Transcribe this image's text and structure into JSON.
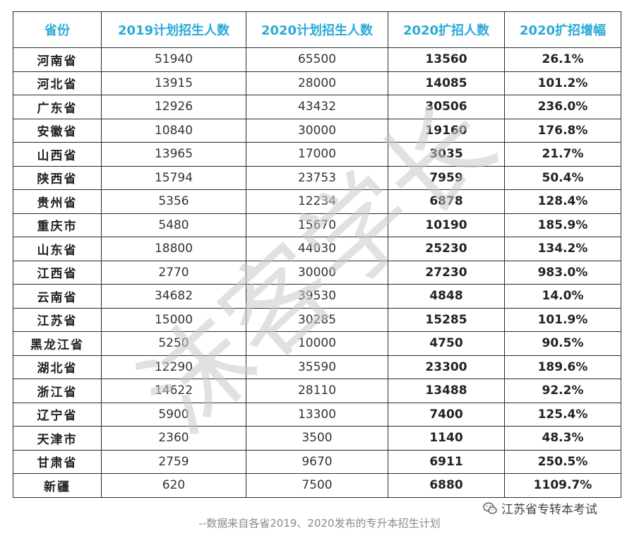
{
  "headers": [
    "省份",
    "2019计划招生人数",
    "2020计划招生人数",
    "2020扩招人数",
    "2020扩招增幅"
  ],
  "rows": [
    {
      "province": "河南省",
      "plan2019": "51940",
      "plan2020": "65500",
      "expand2020": "13560",
      "growth": "26.1%"
    },
    {
      "province": "河北省",
      "plan2019": "13915",
      "plan2020": "28000",
      "expand2020": "14085",
      "growth": "101.2%"
    },
    {
      "province": "广东省",
      "plan2019": "12926",
      "plan2020": "43432",
      "expand2020": "30506",
      "growth": "236.0%"
    },
    {
      "province": "安徽省",
      "plan2019": "10840",
      "plan2020": "30000",
      "expand2020": "19160",
      "growth": "176.8%"
    },
    {
      "province": "山西省",
      "plan2019": "13965",
      "plan2020": "17000",
      "expand2020": "3035",
      "growth": "21.7%"
    },
    {
      "province": "陕西省",
      "plan2019": "15794",
      "plan2020": "23753",
      "expand2020": "7959",
      "growth": "50.4%"
    },
    {
      "province": "贵州省",
      "plan2019": "5356",
      "plan2020": "12234",
      "expand2020": "6878",
      "growth": "128.4%"
    },
    {
      "province": "重庆市",
      "plan2019": "5480",
      "plan2020": "15670",
      "expand2020": "10190",
      "growth": "185.9%"
    },
    {
      "province": "山东省",
      "plan2019": "18800",
      "plan2020": "44030",
      "expand2020": "25230",
      "growth": "134.2%"
    },
    {
      "province": "江西省",
      "plan2019": "2770",
      "plan2020": "30000",
      "expand2020": "27230",
      "growth": "983.0%"
    },
    {
      "province": "云南省",
      "plan2019": "34682",
      "plan2020": "39530",
      "expand2020": "4848",
      "growth": "14.0%"
    },
    {
      "province": "江苏省",
      "plan2019": "15000",
      "plan2020": "30285",
      "expand2020": "15285",
      "growth": "101.9%"
    },
    {
      "province": "黑龙江省",
      "plan2019": "5250",
      "plan2020": "10000",
      "expand2020": "4750",
      "growth": "90.5%"
    },
    {
      "province": "湖北省",
      "plan2019": "12290",
      "plan2020": "35590",
      "expand2020": "23300",
      "growth": "189.6%"
    },
    {
      "province": "浙江省",
      "plan2019": "14622",
      "plan2020": "28110",
      "expand2020": "13488",
      "growth": "92.2%"
    },
    {
      "province": "辽宁省",
      "plan2019": "5900",
      "plan2020": "13300",
      "expand2020": "7400",
      "growth": "125.4%"
    },
    {
      "province": "天津市",
      "plan2019": "2360",
      "plan2020": "3500",
      "expand2020": "1140",
      "growth": "48.3%"
    },
    {
      "province": "甘肃省",
      "plan2019": "2759",
      "plan2020": "9670",
      "expand2020": "6911",
      "growth": "250.5%"
    },
    {
      "province": "新疆",
      "plan2019": "620",
      "plan2020": "7500",
      "expand2020": "6880",
      "growth": "1109.7%"
    }
  ],
  "watermark": {
    "text": "沫客学长",
    "color": "#c8c8c8"
  },
  "brand": {
    "text": "江苏省专转本考试",
    "icon": "wechat-icon"
  },
  "footnote": "--数据来自各省2019、2020发布的专升本招生计划",
  "colors": {
    "header_text": "#2aa9d8",
    "border": "#2a2a2a",
    "footnote": "#8a8a8a"
  }
}
